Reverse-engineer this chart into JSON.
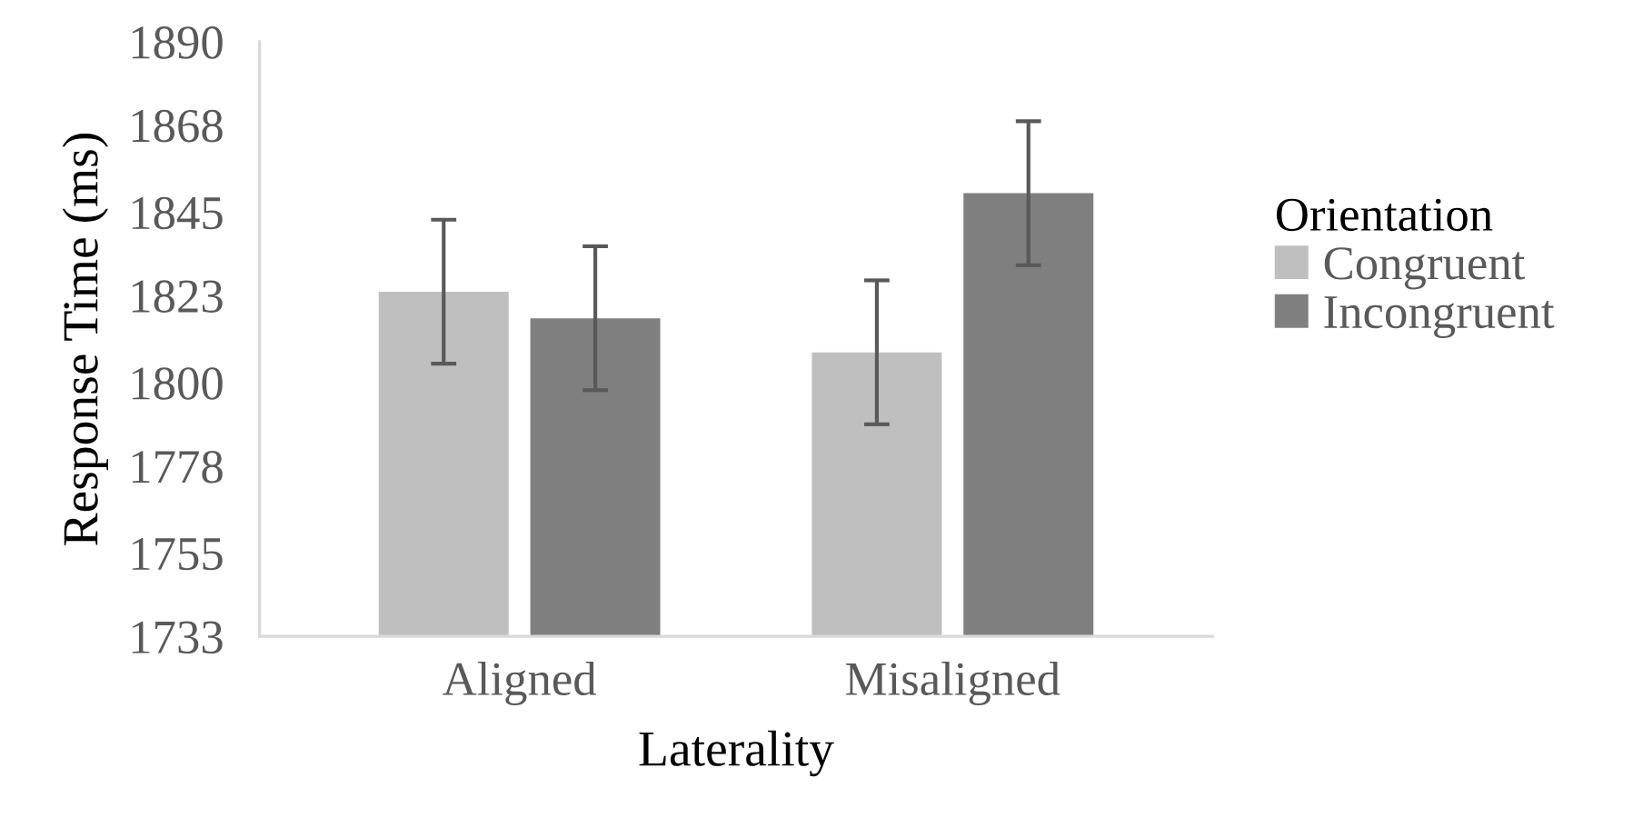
{
  "chart_data": {
    "type": "bar",
    "xlabel": "Laterality",
    "ylabel": "Response Time (ms)",
    "legend_title": "Orientation",
    "categories": [
      "Aligned",
      "Misaligned"
    ],
    "series": [
      {
        "name": "Congruent",
        "color": "#bfbfbf",
        "values": [
          1824,
          1808
        ],
        "errors": [
          19,
          19
        ]
      },
      {
        "name": "Incongruent",
        "color": "#7f7f7f",
        "values": [
          1817,
          1850
        ],
        "errors": [
          19,
          19
        ]
      }
    ],
    "ylim": [
      1733,
      1890
    ],
    "yticks": [
      1733,
      1755,
      1778,
      1800,
      1823,
      1845,
      1868,
      1890
    ],
    "grid": false,
    "legend": "right"
  }
}
